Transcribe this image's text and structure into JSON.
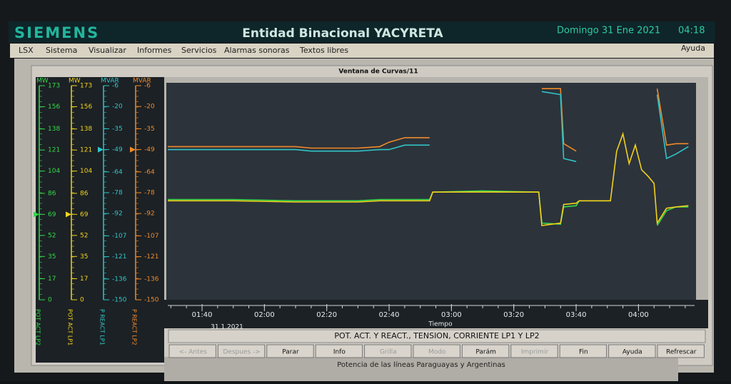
{
  "header": {
    "brand": "SIEMENS",
    "title": "Entidad Binacional YACYRETA",
    "date": "Domingo 31 Ene 2021",
    "time": "04:18"
  },
  "menu": [
    "LSX",
    "Sistema",
    "Visualizar",
    "Informes",
    "Servicios",
    "Alarmas sonoras",
    "Textos libres"
  ],
  "help": "Ayuda",
  "window_title": "Ventana de Curvas/11",
  "chart_data": {
    "type": "line",
    "x": [
      "01:29",
      "01:50",
      "02:10",
      "02:15",
      "02:30",
      "02:37",
      "02:40",
      "02:45",
      "02:53",
      "02:54",
      "03:10",
      "03:28",
      "03:29",
      "03:35",
      "03:36",
      "03:40",
      "03:41",
      "03:51",
      "03:53",
      "03:55",
      "03:57",
      "03:59",
      "04:01",
      "04:03",
      "04:05",
      "04:06",
      "04:09",
      "04:12",
      "04:16"
    ],
    "xlim": [
      "01:29",
      "04:18"
    ],
    "xticks": [
      "01:40",
      "02:00",
      "02:20",
      "02:40",
      "03:00",
      "03:20",
      "03:40",
      "04:00"
    ],
    "date": "31.1.2021",
    "xlabel": "Tiempo",
    "axes": [
      {
        "unit": "MW",
        "name": "POT ACT LP2",
        "color": "#35d94a",
        "ylim": [
          0,
          173
        ],
        "yticks": [
          173,
          156,
          138,
          121,
          104,
          86,
          69,
          52,
          35,
          17,
          0
        ],
        "cursor": 69
      },
      {
        "unit": "MW",
        "name": "POT ACT LP1",
        "color": "#f2d21b",
        "ylim": [
          0,
          173
        ],
        "yticks": [
          173,
          156,
          138,
          121,
          104,
          86,
          69,
          52,
          35,
          17,
          0
        ],
        "cursor": 69
      },
      {
        "unit": "MVAR",
        "name": "P REACT LP1",
        "color": "#2fc6c8",
        "ylim": [
          -150,
          -6
        ],
        "yticks": [
          -6,
          -20,
          -35,
          -49,
          -64,
          -78,
          -92,
          -107,
          -121,
          -136,
          -150
        ],
        "cursor": -49
      },
      {
        "unit": "MVAR",
        "name": "P REACT LP2",
        "color": "#f08a2a",
        "ylim": [
          -150,
          -6
        ],
        "yticks": [
          -6,
          -20,
          -35,
          -49,
          -64,
          -78,
          -92,
          -107,
          -121,
          -136,
          -150
        ],
        "cursor": -49
      }
    ],
    "series": [
      {
        "axis": 3,
        "color": "#f08a2a",
        "values": [
          -47,
          -47,
          -47,
          -48,
          -48,
          -47,
          -44,
          -41,
          -41,
          null,
          null,
          null,
          -8,
          -8,
          -45,
          -50,
          null,
          null,
          null,
          null,
          null,
          null,
          null,
          null,
          null,
          -8,
          -46,
          -45,
          -45
        ]
      },
      {
        "axis": 2,
        "color": "#2fc6c8",
        "values": [
          -49,
          -49,
          -49,
          -50,
          -50,
          -49,
          -49,
          -46,
          -46,
          null,
          null,
          null,
          -10,
          -12,
          -55,
          -57,
          null,
          null,
          null,
          null,
          null,
          null,
          null,
          null,
          null,
          -12,
          -55,
          -52,
          -47
        ]
      },
      {
        "axis": 0,
        "color": "#35d94a",
        "values": [
          81,
          81,
          80,
          80,
          80,
          81,
          81,
          81,
          81,
          87,
          88,
          87,
          62,
          61,
          75,
          76,
          80,
          80,
          null,
          null,
          null,
          null,
          null,
          null,
          null,
          60,
          72,
          75,
          75
        ]
      },
      {
        "axis": 1,
        "color": "#f2d21b",
        "values": [
          80,
          80,
          79,
          79,
          79,
          80,
          80,
          80,
          80,
          87,
          87,
          87,
          60,
          62,
          77,
          78,
          80,
          80,
          120,
          134,
          110,
          125,
          105,
          100,
          94,
          62,
          74,
          75,
          76
        ]
      }
    ]
  },
  "panel": {
    "title": "POT. ACT. Y REACT., TENSION, CORRIENTE LP1 Y LP2",
    "buttons": [
      "<- Antes",
      "Despues ->",
      "Parar",
      "Info",
      "Grilla",
      "Modo",
      "Parám",
      "Imprimir",
      "Fin",
      "Ayuda",
      "Refrescar"
    ]
  },
  "background_title": "Potencia de las líneas Paraguayas y Argentinas"
}
